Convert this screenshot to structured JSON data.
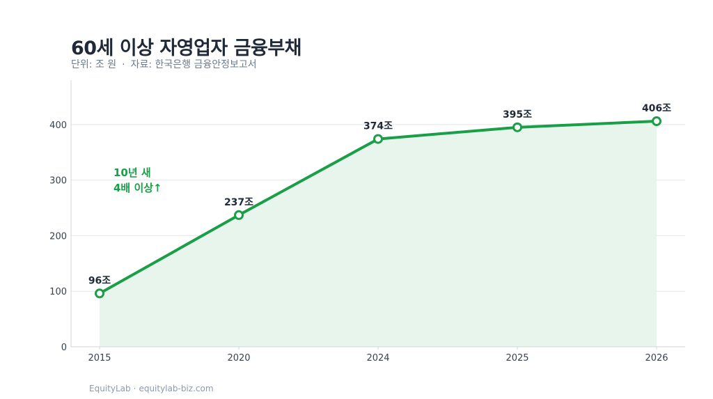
{
  "title": "60세 이상 자영업자 금융부채",
  "subtitle": {
    "unit": "단위: 조 원",
    "separator": "·",
    "source": "자료: 한국은행 금융안정보고서"
  },
  "annotation": {
    "line1": "10년 새",
    "line2": "4배 이상↑"
  },
  "footer": {
    "brand": "EquityLab",
    "separator": "·",
    "site": "equitylab-biz.com"
  },
  "colors": {
    "line": "#1a9e47",
    "area": "#e8f5ec",
    "annotation": "#1a9e47",
    "text": "#1f2937",
    "muted": "#6b7b8f",
    "grid": "#e5e7eb"
  },
  "chart_data": {
    "type": "line",
    "x": [
      "2015",
      "2020",
      "2024",
      "2025",
      "2026"
    ],
    "series": [
      {
        "values": [
          96,
          237,
          374,
          395,
          406
        ],
        "labels": [
          "96조",
          "237조",
          "374조",
          "395조",
          "406조"
        ]
      }
    ],
    "ylim": [
      0,
      480
    ],
    "yticks": [
      0,
      100,
      200,
      300,
      400
    ],
    "grid": true,
    "area_fill": true
  }
}
